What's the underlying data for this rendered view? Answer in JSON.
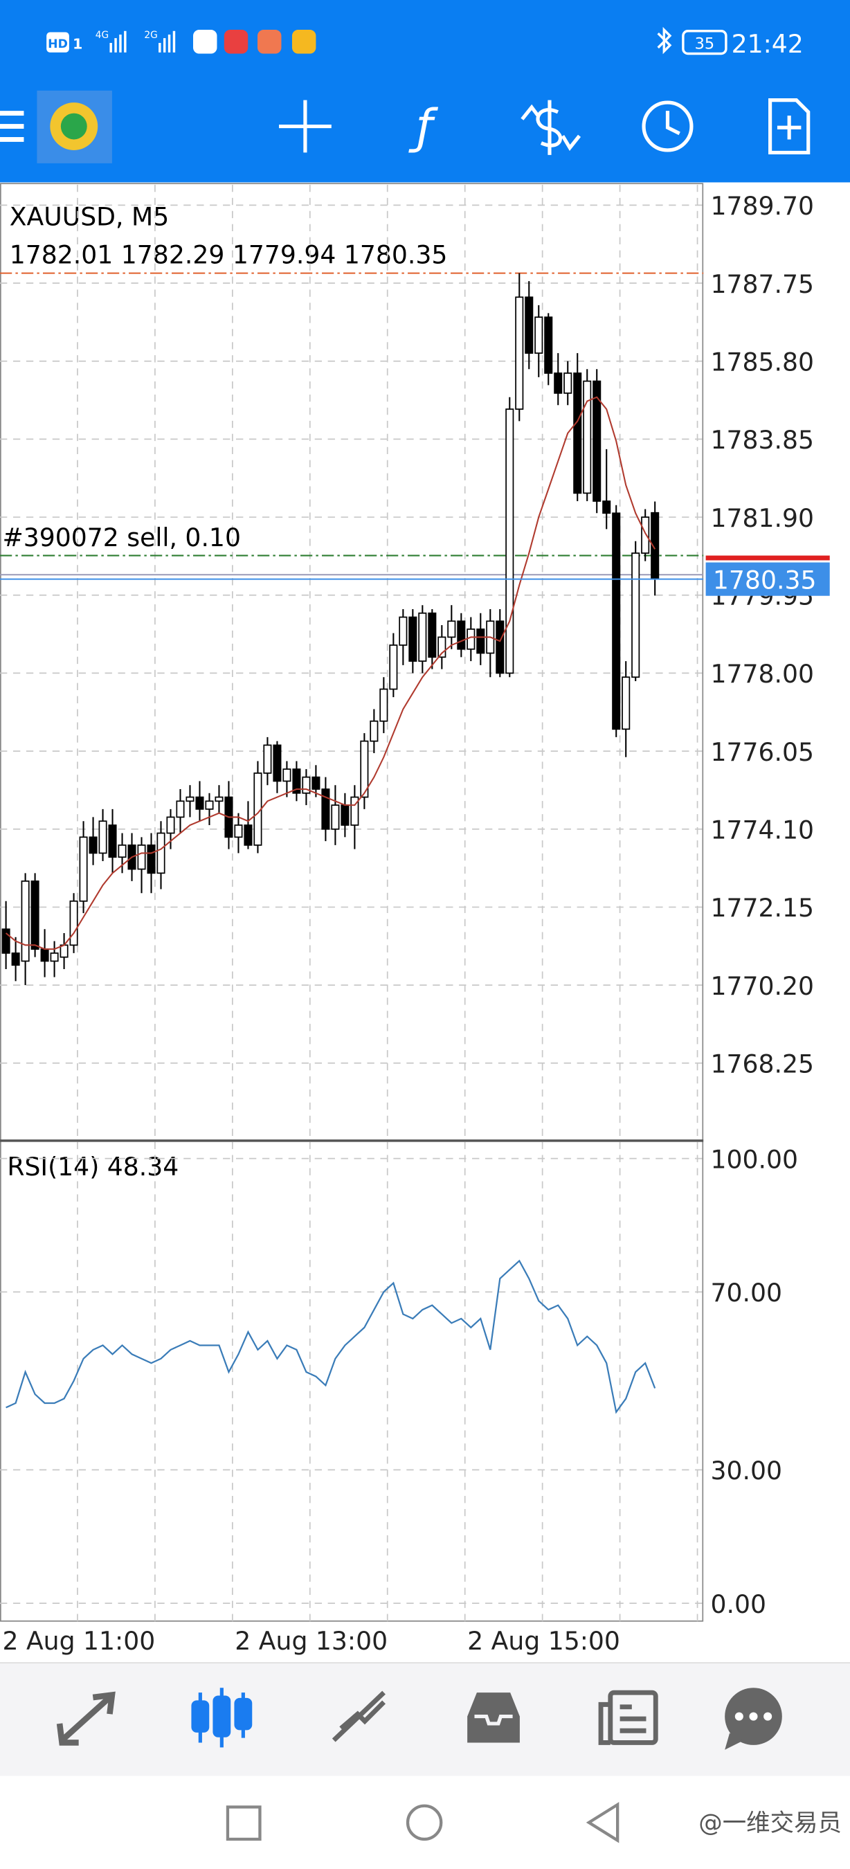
{
  "status_bar": {
    "badge": "HD",
    "sim": "1",
    "network": [
      "4G",
      "2G"
    ],
    "battery": "35",
    "time": "21:42"
  },
  "watermark": "@一维交易员",
  "chart_data": [
    {
      "type": "candlestick",
      "title": "XAUUSD, M5",
      "categories": [
        "2 Aug 11:00",
        null,
        null,
        null,
        null,
        null,
        null,
        null,
        null,
        null,
        null,
        null,
        null,
        null,
        null,
        null,
        null,
        null,
        null,
        null,
        null,
        null,
        null,
        null,
        "2 Aug 13:00",
        null,
        null,
        null,
        null,
        null,
        null,
        null,
        null,
        null,
        null,
        null,
        null,
        null,
        null,
        null,
        null,
        null,
        null,
        null,
        null,
        null,
        null,
        null,
        "2 Aug 15:00",
        null,
        null,
        null,
        null,
        null,
        null,
        null,
        null,
        null,
        null,
        null,
        null,
        null,
        null,
        null,
        null,
        null,
        null,
        null
      ],
      "open": [
        1771.6,
        1771.0,
        1770.8,
        1772.8,
        1771.1,
        1770.8,
        1770.9,
        1771.2,
        1772.3,
        1773.9,
        1773.5,
        1774.2,
        1773.4,
        1773.7,
        1773.1,
        1773.7,
        1773.0,
        1774.0,
        1774.4,
        1774.8,
        1774.9,
        1774.6,
        1774.8,
        1774.9,
        1773.9,
        1774.2,
        1773.7,
        1775.5,
        1776.2,
        1775.3,
        1775.6,
        1775.0,
        1775.4,
        1775.1,
        1774.1,
        1774.7,
        1774.2,
        1774.9,
        1776.3,
        1776.8,
        1777.6,
        1778.7,
        1779.4,
        1778.3,
        1779.5,
        1778.4,
        1778.9,
        1779.3,
        1778.6,
        1779.1,
        1778.5,
        1779.3,
        1778.0,
        1784.6,
        1787.4,
        1786.0,
        1786.9,
        1785.5,
        1785.0,
        1785.5,
        1782.5,
        1785.3,
        1782.3,
        1782.0,
        1776.6,
        1777.9,
        1781.0,
        1782.01
      ],
      "high": [
        1772.3,
        1771.4,
        1773.0,
        1773.0,
        1771.6,
        1771.3,
        1771.5,
        1772.5,
        1774.3,
        1774.4,
        1774.6,
        1774.6,
        1774.0,
        1774.0,
        1773.9,
        1774.0,
        1774.3,
        1774.6,
        1775.1,
        1775.2,
        1775.3,
        1775.0,
        1775.2,
        1775.3,
        1774.5,
        1774.8,
        1775.8,
        1776.4,
        1776.3,
        1775.8,
        1775.8,
        1775.6,
        1775.7,
        1775.4,
        1775.2,
        1775.0,
        1775.2,
        1776.5,
        1777.1,
        1777.9,
        1779.0,
        1779.6,
        1779.6,
        1779.7,
        1779.6,
        1779.2,
        1779.7,
        1779.5,
        1779.4,
        1779.5,
        1779.6,
        1779.6,
        1784.9,
        1788.0,
        1787.8,
        1787.2,
        1787.0,
        1786.0,
        1785.8,
        1786.0,
        1785.6,
        1785.6,
        1783.6,
        1782.2,
        1778.3,
        1781.3,
        1782.1,
        1782.29
      ],
      "low": [
        1770.6,
        1770.3,
        1770.2,
        1770.9,
        1770.4,
        1770.4,
        1770.6,
        1771.0,
        1772.0,
        1773.2,
        1773.3,
        1773.0,
        1773.0,
        1772.8,
        1772.5,
        1772.5,
        1772.6,
        1773.6,
        1774.0,
        1774.4,
        1774.3,
        1774.2,
        1774.5,
        1773.6,
        1773.5,
        1773.6,
        1773.5,
        1775.2,
        1775.0,
        1774.9,
        1774.8,
        1774.7,
        1774.9,
        1773.8,
        1773.7,
        1773.9,
        1773.6,
        1774.6,
        1776.0,
        1776.5,
        1777.4,
        1778.2,
        1778.0,
        1778.0,
        1778.1,
        1778.1,
        1778.6,
        1778.4,
        1778.3,
        1778.2,
        1777.9,
        1777.9,
        1777.9,
        1784.3,
        1785.6,
        1785.4,
        1785.2,
        1784.7,
        1784.7,
        1782.3,
        1782.3,
        1782.0,
        1781.6,
        1776.4,
        1775.9,
        1777.8,
        1780.8,
        1779.94
      ],
      "close": [
        1771.0,
        1770.7,
        1772.8,
        1771.1,
        1770.8,
        1771.0,
        1771.2,
        1772.3,
        1773.9,
        1773.5,
        1774.3,
        1773.4,
        1773.7,
        1773.1,
        1773.7,
        1773.0,
        1774.0,
        1774.4,
        1774.8,
        1774.9,
        1774.6,
        1774.8,
        1774.9,
        1773.9,
        1774.2,
        1773.7,
        1775.5,
        1776.2,
        1775.3,
        1775.6,
        1775.0,
        1775.4,
        1775.1,
        1774.1,
        1774.7,
        1774.2,
        1774.9,
        1776.3,
        1776.8,
        1777.6,
        1778.7,
        1779.4,
        1778.3,
        1779.5,
        1778.4,
        1778.9,
        1779.3,
        1778.6,
        1779.1,
        1778.5,
        1779.3,
        1778.0,
        1784.6,
        1787.4,
        1786.0,
        1786.9,
        1785.5,
        1785.0,
        1785.5,
        1782.5,
        1785.3,
        1782.3,
        1782.0,
        1776.6,
        1777.9,
        1781.0,
        1781.9,
        1780.35
      ],
      "ma": {
        "color": "#b03a2e",
        "values": [
          1771.5,
          1771.3,
          1771.2,
          1771.2,
          1771.1,
          1771.1,
          1771.2,
          1771.5,
          1771.9,
          1772.3,
          1772.7,
          1773.0,
          1773.2,
          1773.4,
          1773.5,
          1773.5,
          1773.6,
          1773.8,
          1774.0,
          1774.2,
          1774.3,
          1774.4,
          1774.5,
          1774.4,
          1774.4,
          1774.3,
          1774.5,
          1774.8,
          1774.9,
          1775.0,
          1775.1,
          1775.1,
          1775.0,
          1774.9,
          1774.8,
          1774.7,
          1774.7,
          1775.0,
          1775.4,
          1775.9,
          1776.5,
          1777.1,
          1777.5,
          1777.9,
          1778.2,
          1778.5,
          1778.7,
          1778.8,
          1778.9,
          1778.9,
          1778.9,
          1778.8,
          1779.3,
          1780.2,
          1781.0,
          1781.9,
          1782.6,
          1783.3,
          1784.0,
          1784.3,
          1784.8,
          1784.9,
          1784.6,
          1783.8,
          1782.7,
          1782.0,
          1781.5,
          1781.1
        ]
      },
      "bull_color": "#ffffff",
      "bear_color": "#000000",
      "ylim": [
        1766.31,
        1790.21
      ],
      "yticks": [
        {
          "value": 1789.7,
          "label": "1789.70"
        },
        {
          "value": 1787.75,
          "label": "1787.75"
        },
        {
          "value": 1785.8,
          "label": "1785.80"
        },
        {
          "value": 1783.85,
          "label": "1783.85"
        },
        {
          "value": 1781.9,
          "label": "1781.90"
        },
        {
          "value": 1779.95,
          "label": "1779.95"
        },
        {
          "value": 1778.0,
          "label": "1778.00"
        },
        {
          "value": 1776.05,
          "label": "1776.05"
        },
        {
          "value": 1774.1,
          "label": "1774.10"
        },
        {
          "value": 1772.15,
          "label": "1772.15"
        },
        {
          "value": 1770.2,
          "label": "1770.20"
        },
        {
          "value": 1768.25,
          "label": "1768.25"
        }
      ],
      "grid": true,
      "levels": [
        {
          "value": 1788.0,
          "color": "#e0602c"
        },
        {
          "value": 1780.94,
          "color": "#2e7d32",
          "label": "#390072 sell, 0.10"
        },
        {
          "value": 1780.46,
          "color": "#9a9ab8"
        }
      ],
      "ask_marker": {
        "value": 1780.88,
        "color": "#e02020"
      },
      "bid_color": "#3d8fe8"
    },
    {
      "type": "line",
      "title": "RSI(14) 48.34",
      "color": "#3a7cb8",
      "values": [
        44,
        45,
        52,
        47,
        45,
        45,
        46,
        50,
        55,
        57,
        58,
        56,
        58,
        56,
        55,
        54,
        55,
        57,
        58,
        59,
        58,
        58,
        58,
        52,
        56,
        61,
        57,
        59,
        55,
        58,
        57,
        52,
        51,
        49,
        55,
        58,
        60,
        62,
        66,
        70,
        72,
        65,
        64,
        66,
        67,
        65,
        63,
        64,
        62,
        64,
        57,
        73,
        75,
        77,
        73,
        68,
        66,
        67,
        64,
        58,
        60,
        58,
        54,
        43,
        46,
        52,
        54,
        48.34
      ],
      "ylim": [
        -4,
        104
      ],
      "yticks": [
        {
          "value": 100,
          "label": "100.00"
        },
        {
          "value": 70,
          "label": "70.00"
        },
        {
          "value": 30,
          "label": "30.00"
        },
        {
          "value": 0,
          "label": "0.00"
        }
      ],
      "grid": true
    }
  ]
}
